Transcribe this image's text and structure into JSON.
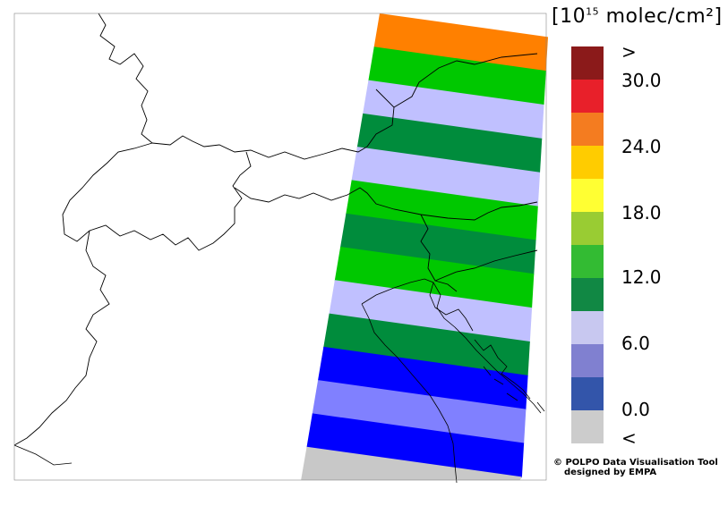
{
  "legend": {
    "title_prefix": "[10",
    "title_exp": "15",
    "title_suffix": " molec/cm²]",
    "labels": [
      ">",
      "30.0",
      "24.0",
      "18.0",
      "12.0",
      "6.0",
      "0.0",
      "<"
    ],
    "colors": [
      "#8b1a1a",
      "#e8202a",
      "#f47c20",
      "#ffcc00",
      "#ffff33",
      "#99cc33",
      "#33bb33",
      "#118844",
      "#c8c8f0",
      "#8080d0",
      "#3355aa",
      "#cccccc"
    ]
  },
  "swath_bands": [
    {
      "level": "24–27",
      "color": "#ff8000"
    },
    {
      "level": "12–15",
      "color": "#00c800"
    },
    {
      "level": "6–9",
      "color": "#c0c0ff"
    },
    {
      "level": "9–12",
      "color": "#008c3c"
    },
    {
      "level": "6–9",
      "color": "#c0c0ff"
    },
    {
      "level": "12–15",
      "color": "#00c800"
    },
    {
      "level": "9–12",
      "color": "#008c3c"
    },
    {
      "level": "12–15",
      "color": "#00c800"
    },
    {
      "level": "6–9",
      "color": "#c0c0ff"
    },
    {
      "level": "9–12",
      "color": "#008c3c"
    },
    {
      "level": "0–3",
      "color": "#0000ff"
    },
    {
      "level": "3–6",
      "color": "#8080ff"
    },
    {
      "level": "0–3",
      "color": "#0000ff"
    },
    {
      "level": "<",
      "color": "#c8c8c8"
    }
  ],
  "credit": {
    "line1": "© POLPO Data Visualisation Tool",
    "line2": "designed by EMPA"
  }
}
